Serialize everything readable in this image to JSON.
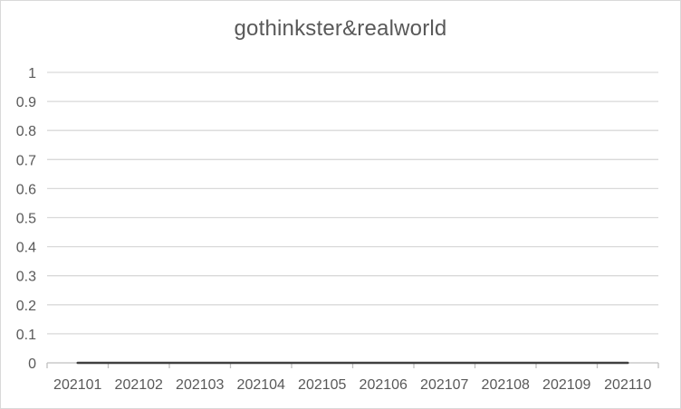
{
  "chart_data": {
    "type": "line",
    "title": "gothinkster&realworld",
    "categories": [
      "202101",
      "202102",
      "202103",
      "202104",
      "202105",
      "202106",
      "202107",
      "202108",
      "202109",
      "202110"
    ],
    "series": [
      {
        "values": [
          0,
          0,
          0,
          0,
          0,
          0,
          0,
          0,
          0,
          0
        ],
        "color": "#404040"
      }
    ],
    "ylim": [
      0,
      1
    ],
    "yticks": [
      "0",
      "0.1",
      "0.2",
      "0.3",
      "0.4",
      "0.5",
      "0.6",
      "0.7",
      "0.8",
      "0.9",
      "1"
    ],
    "grid": true,
    "legend": "none",
    "colors": {
      "grid": "#d9d9d9",
      "text": "#595959",
      "axis": "#bfbfbf"
    }
  }
}
